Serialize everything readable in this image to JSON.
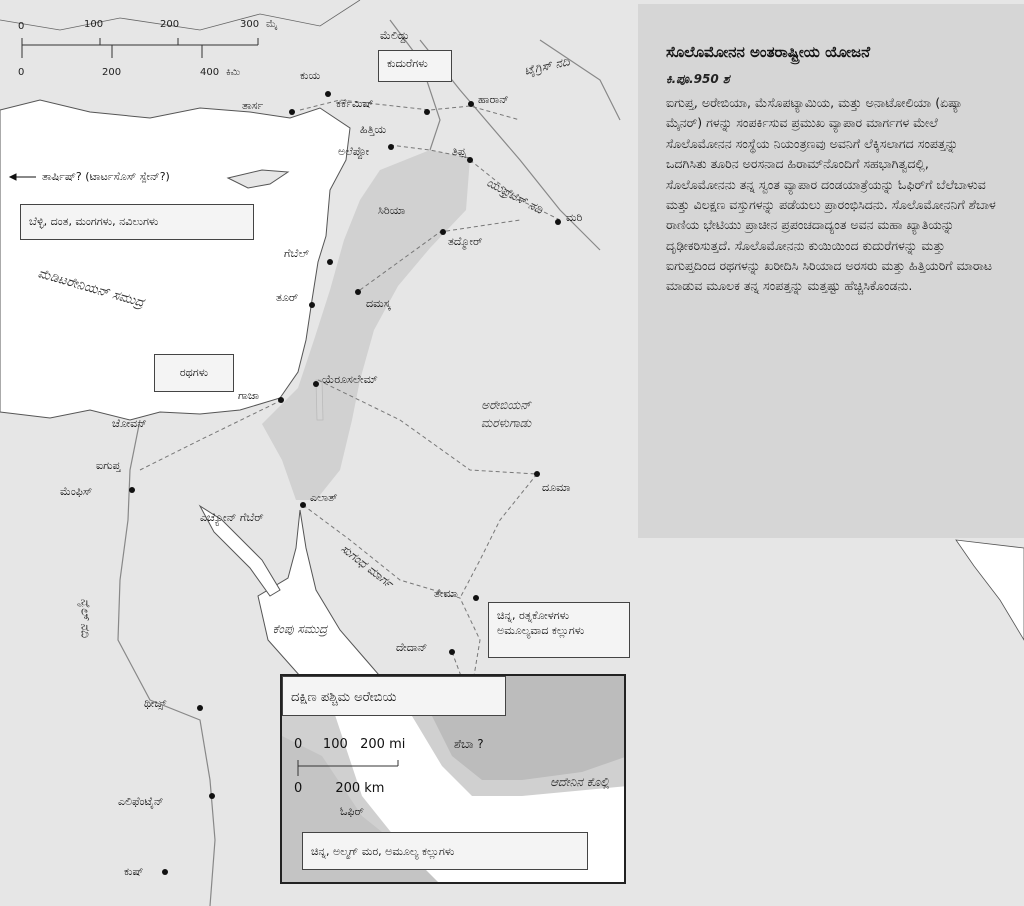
{
  "panel": {
    "title": "ಸೊಲೊಮೋನನ ಅಂತರಾಷ್ಟ್ರೀಯ ಯೋಜನೆ",
    "date": "ಕಿ.ಪೂ.950 ಶ",
    "body": "ಐಗುಪ್ತ, ಅರೇಬಿಯಾ, ಮೆಸೊಪಟ್ಯಾಮಿಯ, ಮತ್ತು ಅನಾಟೋಲಿಯಾ (ಏಷ್ಯಾ ಮೈನರ್) ಗಳನ್ನು ಸಂಪರ್ಕಿಸುವ ಪ್ರಮುಖ ವ್ಯಾಪಾರ ಮಾರ್ಗಗಳ ಮೇಲೆ ಸೊಲೊಮೋನನ ಸಂಸ್ಥೆಯ ನಿಯಂತ್ರಣವು ಅವನಿಗೆ ಲೆಕ್ಕಿಸಲಾಗದ ಸಂಪತ್ತನ್ನು ಒದಗಿಸಿತು ತೂರಿನ ಅರಸನಾದ ಹಿರಾಮ್‌ನೊಂದಿಗೆ ಸಹಭಾಗಿತ್ವದಲ್ಲಿ, ಸೊಲೊಮೋನನು ತನ್ನ ಸ್ವಂತ ವ್ಯಾಪಾರ ದಂಡಯಾತ್ರೆಯನ್ನು ಓಫಿರ್‌ಗೆ ಬೆಲೆಬಾಳುವ ಮತ್ತು ವಿಲಕ್ಷಣ ವಸ್ತುಗಳನ್ನು ಪಡೆಯಲು ಪ್ರಾರಂಭಿಸಿದನು. ಸೊಲೊಮೋನನಿಗೆ ಶೆಬಾಳ ರಾಣಿಯ ಭೇಟಿಯು ಪ್ರಾಚೀನ ಪ್ರಪಂಚದಾದ್ಯಂತ ಅವನ ಮಹಾ ಖ್ಯಾತಿಯನ್ನು ದೃಢೀಕರಿಸುತ್ತದೆ. ಸೊಲೊಮೋನನು ಕುಯಿಯಿಂದ ಕುದುರೆಗಳನ್ನು ಮತ್ತು ಐಗುಪ್ತದಿಂದ ರಥಗಳನ್ನು ಖರೀದಿಸಿ ಸಿರಿಯಾದ ಅರಸರು ಮತ್ತು ಹಿತ್ತಿಯರಿಗೆ ಮಾರಾಟ ಮಾಡುವ ಮೂಲಕ ತನ್ನ ಸಂಪತ್ತನ್ನು ಮತ್ತಷ್ಟು ಹೆಚ್ಚಿಸಿಕೊಂಡನು."
  },
  "scale": {
    "mi_ticks": [
      "0",
      "100",
      "200",
      "300"
    ],
    "mi_unit": "ಮೈ",
    "km_ticks": [
      "0",
      "200",
      "400"
    ],
    "km_unit": "ಕಿಮಿ"
  },
  "cities": {
    "meliddu": "ಮೆಲಿದ್ದು",
    "kue": "ಕುಯ",
    "tarsus": "ತಾರ್ಸ",
    "carchemish": "ಕರ್ಕೆಮಿಷ್",
    "haran": "ಹಾರಾನ್",
    "hittites": "ಹಿತ್ತಿಯ",
    "aleppo": "ಅಲೆಪ್ಪೋ",
    "tipsah": "ತಿಪ್ಸ",
    "syria": "ಸಿರಿಯಾ",
    "mari": "ಮರಿ",
    "tadmor": "ತದ್ಮೋರ್",
    "gebal": "ಗೆಬೆಲ್",
    "tyre": "ತೂರ್",
    "damascus": "ದಮಸ್ಕ",
    "jerusalem": "ಯೆರೂಸಲೇಮ್",
    "gaza": "ಗಾಜಾ",
    "zoan": "ಚೋವನ್",
    "egypt": "ಐಗುಪ್ತ",
    "memphis": "ಮೆಂಫಿಸ್",
    "elath": "ಎಲಾತ್",
    "eziongeber": "ಎಚ್ಯೋನ್ ಗೆಬೆರ್",
    "dumah": "ದೂಮಾ",
    "tema": "ತೇಮಾ",
    "dedan": "ದೇದಾನ್",
    "thebes": "ಥೀಬ್ಸ್",
    "elephantine": "ಎಲಿಫೆಂಟೈನ್",
    "kush": "ಕುಷ್"
  },
  "water": {
    "tigris": "ಟೈಗ್ರಿಸ್ ನದಿ",
    "euphrates": "ಯುಫ್ರೆಟಿಸ್ ನದಿ",
    "mediterranean": "ಮೆಡಿಟರೇನಿಯನ್ ಸಮುದ್ರ",
    "red_sea": "ಕೆಂಪು ಸಮುದ್ರ",
    "nile": "ನೈಲ್ ನದಿ",
    "gulf_aden": "ಆದೇನಿನ ಕೊಲ್ಲಿ"
  },
  "regions": {
    "arabian_desert": "ಅರೇಬಿಯನ್ ಮರಳುಗಾಡು",
    "incense_route": "ಸುಗಂಧ ಮಾರ್ಗ"
  },
  "callouts": {
    "horses": "ಕುದುರೆಗಳು",
    "tarshish": "ತಾರ್ಷಿಷ್? (ಟಾರ್ಟಸೊಸ್ ಸ್ಪೇನ್?)",
    "silver": "ಬೆಳ್ಳಿ, ದಂತ, ಮಂಗಗಳು, ನವಿಲುಗಳು",
    "chariots": "ರಥಗಳು",
    "sheba_goods_1": "ಚಿನ್ನ, ರತ್ನಕೋಳಗಳು",
    "sheba_goods_2": "ಅಮೂಲ್ಯವಾದ ಕಲ್ಲುಗಳು"
  },
  "inset": {
    "title": "ದಕ್ಷಿಣ ಪಶ್ಚಿಮ ಅರೇಬಿಯ",
    "scale_mi": "0     100   200 mi",
    "scale_km": "0        200 km",
    "sheba": "ಶೆಬಾ ?",
    "ophir": "ಓಫಿರ್",
    "goods": "ಚಿನ್ನ, ಅಲ್ಮಗ್ ಮರ, ಅಮೂಲ್ಯ ಕಲ್ಲುಗಳು"
  },
  "colors": {
    "land": "#e6e6e6",
    "sea": "#ffffff",
    "kingdom": "#cdcdcd",
    "panel": "#d6d6d6"
  }
}
